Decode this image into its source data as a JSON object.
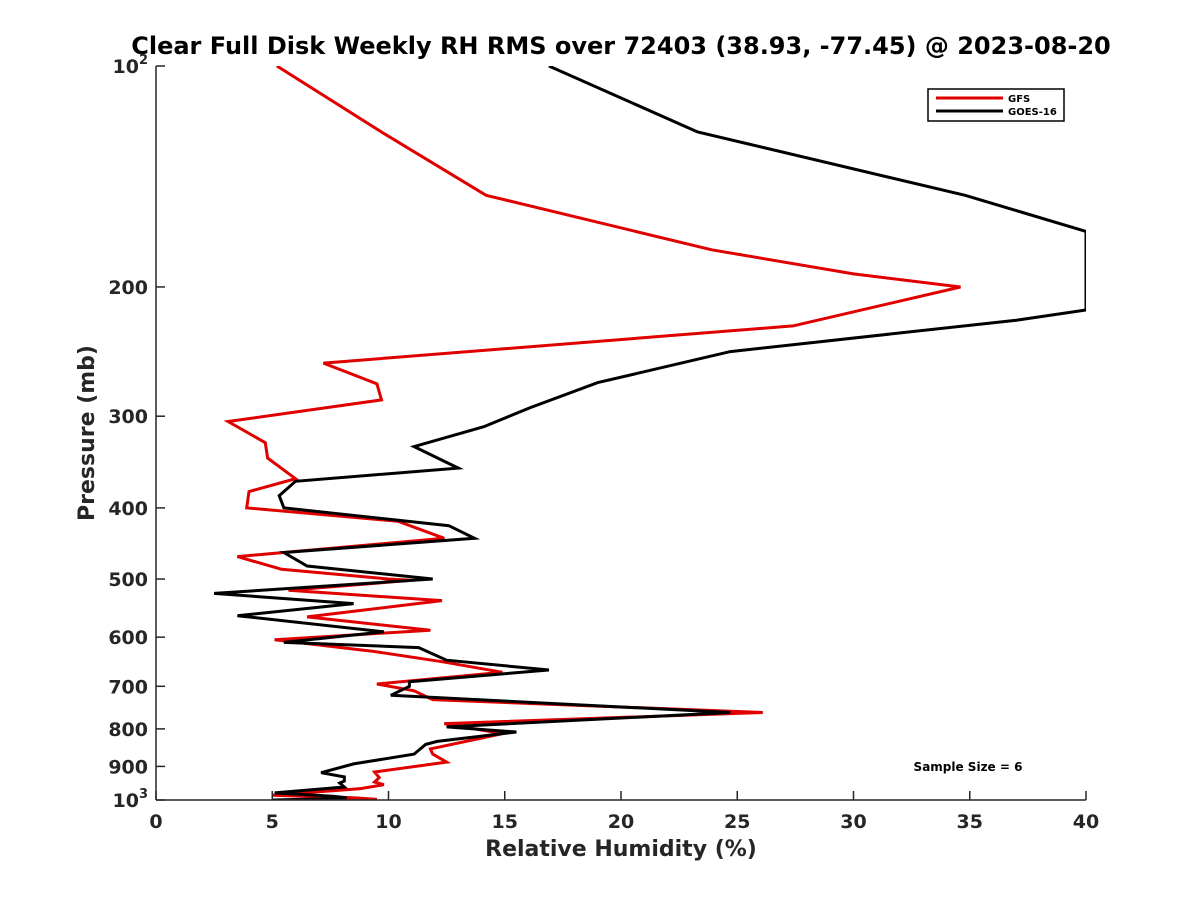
{
  "chart_data": {
    "type": "line",
    "title": "Clear Full Disk Weekly RH RMS over 72403 (38.93, -77.45) @ 2023-08-20",
    "xlabel": "Relative Humidity (%)",
    "ylabel": "Pressure (mb)",
    "xlim": [
      0,
      40
    ],
    "ylim": [
      100,
      1000
    ],
    "y_scale": "log",
    "y_reversed": true,
    "grid": false,
    "legend_placement": "top-right",
    "x_ticks": [
      {
        "value": 0,
        "label": "0"
      },
      {
        "value": 5,
        "label": "5"
      },
      {
        "value": 10,
        "label": "10"
      },
      {
        "value": 15,
        "label": "15"
      },
      {
        "value": 20,
        "label": "20"
      },
      {
        "value": 25,
        "label": "25"
      },
      {
        "value": 30,
        "label": "30"
      },
      {
        "value": 35,
        "label": "35"
      },
      {
        "value": 40,
        "label": "40"
      }
    ],
    "y_ticks": [
      {
        "value": 100,
        "label": "10",
        "sup": "2"
      },
      {
        "value": 200,
        "label": "200",
        "sup": ""
      },
      {
        "value": 300,
        "label": "300",
        "sup": ""
      },
      {
        "value": 400,
        "label": "400",
        "sup": ""
      },
      {
        "value": 500,
        "label": "500",
        "sup": ""
      },
      {
        "value": 600,
        "label": "600",
        "sup": ""
      },
      {
        "value": 700,
        "label": "700",
        "sup": ""
      },
      {
        "value": 800,
        "label": "800",
        "sup": ""
      },
      {
        "value": 900,
        "label": "900",
        "sup": ""
      },
      {
        "value": 1000,
        "label": "10",
        "sup": "3"
      }
    ],
    "annotation": "Sample Size = 6",
    "series": [
      {
        "name": "GFS",
        "color": "#e00000",
        "points": [
          [
            5.2,
            100
          ],
          [
            9.7,
            123
          ],
          [
            14.2,
            150
          ],
          [
            23.9,
            178
          ],
          [
            30.0,
            192
          ],
          [
            34.6,
            200
          ],
          [
            27.4,
            226
          ],
          [
            7.2,
            254
          ],
          [
            9.5,
            271
          ],
          [
            9.7,
            285
          ],
          [
            3.1,
            305
          ],
          [
            4.7,
            326
          ],
          [
            4.8,
            342
          ],
          [
            6.0,
            365
          ],
          [
            4.0,
            380
          ],
          [
            3.9,
            400
          ],
          [
            10.4,
            417
          ],
          [
            12.4,
            440
          ],
          [
            3.5,
            466
          ],
          [
            5.4,
            485
          ],
          [
            10.0,
            500
          ],
          [
            11.0,
            502
          ],
          [
            5.7,
            518
          ],
          [
            12.3,
            535
          ],
          [
            6.5,
            563
          ],
          [
            11.8,
            587
          ],
          [
            5.1,
            605
          ],
          [
            9.3,
            627
          ],
          [
            12.3,
            648
          ],
          [
            14.9,
            670
          ],
          [
            9.5,
            695
          ],
          [
            11.1,
            710
          ],
          [
            11.9,
            730
          ],
          [
            26.1,
            760
          ],
          [
            12.4,
            787
          ],
          [
            14.9,
            812
          ],
          [
            11.8,
            852
          ],
          [
            11.9,
            866
          ],
          [
            12.5,
            888
          ],
          [
            9.4,
            916
          ],
          [
            9.6,
            932
          ],
          [
            9.4,
            945
          ],
          [
            9.8,
            953
          ],
          [
            8.8,
            965
          ],
          [
            5.0,
            985
          ],
          [
            8.5,
            993
          ],
          [
            9.5,
            998
          ],
          [
            8.7,
            999
          ],
          [
            5.2,
            1000
          ]
        ]
      },
      {
        "name": "GOES-16",
        "color": "#000000",
        "points": [
          [
            16.9,
            100
          ],
          [
            23.3,
            123
          ],
          [
            34.8,
            150
          ],
          [
            40.0,
            168
          ],
          [
            40.0,
            215
          ],
          [
            37.0,
            222
          ],
          [
            24.7,
            245
          ],
          [
            19.0,
            270
          ],
          [
            16.1,
            292
          ],
          [
            14.1,
            310
          ],
          [
            11.1,
            330
          ],
          [
            13.0,
            353
          ],
          [
            6.0,
            368
          ],
          [
            5.3,
            385
          ],
          [
            5.5,
            400
          ],
          [
            12.6,
            423
          ],
          [
            13.7,
            440
          ],
          [
            5.5,
            460
          ],
          [
            6.5,
            480
          ],
          [
            11.9,
            500
          ],
          [
            2.5,
            523
          ],
          [
            8.5,
            540
          ],
          [
            3.5,
            561
          ],
          [
            9.8,
            590
          ],
          [
            5.5,
            610
          ],
          [
            11.3,
            620
          ],
          [
            12.5,
            645
          ],
          [
            16.9,
            665
          ],
          [
            10.9,
            690
          ],
          [
            10.9,
            700
          ],
          [
            10.1,
            720
          ],
          [
            24.7,
            760
          ],
          [
            12.5,
            795
          ],
          [
            15.5,
            808
          ],
          [
            12.1,
            832
          ],
          [
            11.6,
            840
          ],
          [
            11.1,
            866
          ],
          [
            8.5,
            893
          ],
          [
            7.1,
            918
          ],
          [
            8.1,
            930
          ],
          [
            8.1,
            942
          ],
          [
            7.9,
            948
          ],
          [
            8.1,
            960
          ],
          [
            5.1,
            978
          ],
          [
            7.6,
            988
          ],
          [
            8.2,
            993
          ],
          [
            7.4,
            996
          ],
          [
            5.0,
            1000
          ]
        ]
      }
    ]
  }
}
